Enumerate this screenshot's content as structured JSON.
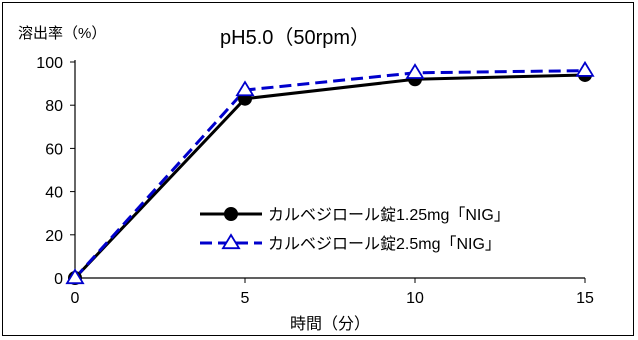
{
  "chart_data": {
    "type": "line",
    "title": "pH5.0（50rpm）",
    "ylabel": "溶出率（%）",
    "xlabel": "時間（分）",
    "x": [
      0,
      5,
      10,
      15
    ],
    "xlim": [
      0,
      15
    ],
    "ylim": [
      0,
      100
    ],
    "x_ticks": [
      "0",
      "5",
      "10",
      "15"
    ],
    "y_ticks": [
      "0",
      "20",
      "40",
      "60",
      "80",
      "100"
    ],
    "grid": false,
    "legend_position": "lower-right",
    "series": [
      {
        "name": "カルベジロール錠1.25mg「NIG」",
        "values": [
          0,
          83,
          92,
          94
        ],
        "color": "#000000",
        "line_style": "solid",
        "marker": "filled-circle"
      },
      {
        "name": "カルベジロール錠2.5mg「NIG」",
        "values": [
          0,
          87,
          95,
          96
        ],
        "color": "#0000cc",
        "line_style": "dashed",
        "marker": "open-triangle"
      }
    ]
  }
}
